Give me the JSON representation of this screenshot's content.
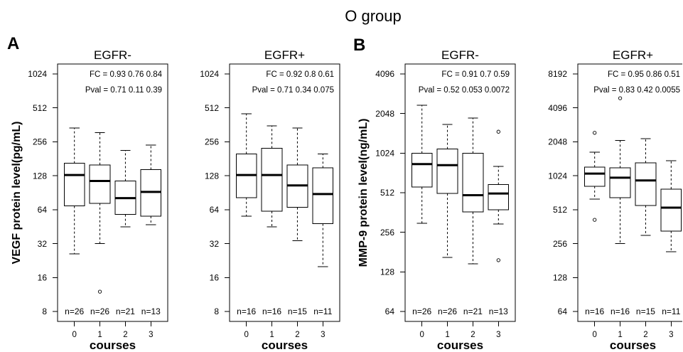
{
  "figure": {
    "title": "O group",
    "panel_labels": [
      "A",
      "B"
    ]
  },
  "chart_data": [
    {
      "type": "box",
      "title": "EGFR-",
      "xlabel": "courses",
      "ylabel": "VEGF protein level(pg/mL)",
      "y_scale": "log2",
      "ylim": [
        8,
        1024
      ],
      "y_ticks": [
        8,
        16,
        32,
        64,
        128,
        256,
        512,
        1024
      ],
      "grid": false,
      "categories": [
        "0",
        "1",
        "2",
        "3"
      ],
      "annotations": {
        "fc": "FC = 0.93 0.76 0.84",
        "pval": "Pval = 0.71 0.11 0.39"
      },
      "n_labels": [
        "n=26",
        "n=26",
        "n=21",
        "n=13"
      ],
      "boxes": [
        {
          "whisker_low": 26,
          "q1": 69,
          "median": 130,
          "q3": 165,
          "whisker_high": 340,
          "outliers": []
        },
        {
          "whisker_low": 32,
          "q1": 73,
          "median": 115,
          "q3": 160,
          "whisker_high": 310,
          "outliers": [
            12
          ]
        },
        {
          "whisker_low": 45,
          "q1": 58,
          "median": 81,
          "q3": 115,
          "whisker_high": 215,
          "outliers": []
        },
        {
          "whisker_low": 47,
          "q1": 56,
          "median": 92,
          "q3": 145,
          "whisker_high": 240,
          "outliers": []
        }
      ]
    },
    {
      "type": "box",
      "title": "EGFR+",
      "xlabel": "courses",
      "y_scale": "log2",
      "ylim": [
        8,
        1024
      ],
      "y_ticks": [
        8,
        16,
        32,
        64,
        128,
        256,
        512,
        1024
      ],
      "grid": false,
      "categories": [
        "0",
        "1",
        "2",
        "3"
      ],
      "annotations": {
        "fc": "FC = 0.92 0.8 0.61",
        "pval": "Pval = 0.71 0.34 0.075"
      },
      "n_labels": [
        "n=16",
        "n=16",
        "n=15",
        "n=11"
      ],
      "boxes": [
        {
          "whisker_low": 56,
          "q1": 82,
          "median": 130,
          "q3": 200,
          "whisker_high": 455,
          "outliers": []
        },
        {
          "whisker_low": 45,
          "q1": 62,
          "median": 130,
          "q3": 225,
          "whisker_high": 355,
          "outliers": []
        },
        {
          "whisker_low": 34,
          "q1": 67,
          "median": 105,
          "q3": 160,
          "whisker_high": 340,
          "outliers": []
        },
        {
          "whisker_low": 20,
          "q1": 48,
          "median": 88,
          "q3": 150,
          "whisker_high": 200,
          "outliers": []
        }
      ]
    },
    {
      "type": "box",
      "title": "EGFR-",
      "xlabel": "courses",
      "ylabel": "MMP-9 protein level(ng/mL)",
      "y_scale": "log2",
      "ylim": [
        64,
        4096
      ],
      "y_ticks": [
        64,
        128,
        256,
        512,
        1024,
        2048,
        4096
      ],
      "grid": false,
      "categories": [
        "0",
        "1",
        "2",
        "3"
      ],
      "annotations": {
        "fc": "FC = 0.91 0.7 0.59",
        "pval": "Pval = 0.52 0.053 0.0072"
      },
      "n_labels": [
        "n=26",
        "n=26",
        "n=21",
        "n=13"
      ],
      "boxes": [
        {
          "whisker_low": 300,
          "q1": 565,
          "median": 845,
          "q3": 1020,
          "whisker_high": 2370,
          "outliers": []
        },
        {
          "whisker_low": 165,
          "q1": 505,
          "median": 830,
          "q3": 1100,
          "whisker_high": 1690,
          "outliers": []
        },
        {
          "whisker_low": 147,
          "q1": 365,
          "median": 490,
          "q3": 1020,
          "whisker_high": 1890,
          "outliers": []
        },
        {
          "whisker_low": 296,
          "q1": 380,
          "median": 505,
          "q3": 590,
          "whisker_high": 810,
          "outliers": [
            1490,
            157
          ]
        }
      ]
    },
    {
      "type": "box",
      "title": "EGFR+",
      "xlabel": "courses",
      "y_scale": "log2",
      "ylim": [
        64,
        8192
      ],
      "y_ticks": [
        64,
        128,
        256,
        512,
        1024,
        2048,
        4096,
        8192
      ],
      "grid": false,
      "categories": [
        "0",
        "1",
        "2",
        "3"
      ],
      "annotations": {
        "fc": "FC = 0.95 0.86 0.51",
        "pval": "Pval = 0.83 0.42 0.0055"
      },
      "n_labels": [
        "n=16",
        "n=16",
        "n=15",
        "n=11"
      ],
      "boxes": [
        {
          "whisker_low": 636,
          "q1": 826,
          "median": 1070,
          "q3": 1220,
          "whisker_high": 1660,
          "outliers": [
            2460,
            416
          ]
        },
        {
          "whisker_low": 256,
          "q1": 655,
          "median": 985,
          "q3": 1200,
          "whisker_high": 2100,
          "outliers": [
            4990
          ]
        },
        {
          "whisker_low": 303,
          "q1": 558,
          "median": 930,
          "q3": 1330,
          "whisker_high": 2190,
          "outliers": []
        },
        {
          "whisker_low": 217,
          "q1": 331,
          "median": 534,
          "q3": 780,
          "whisker_high": 1390,
          "outliers": []
        }
      ]
    }
  ]
}
